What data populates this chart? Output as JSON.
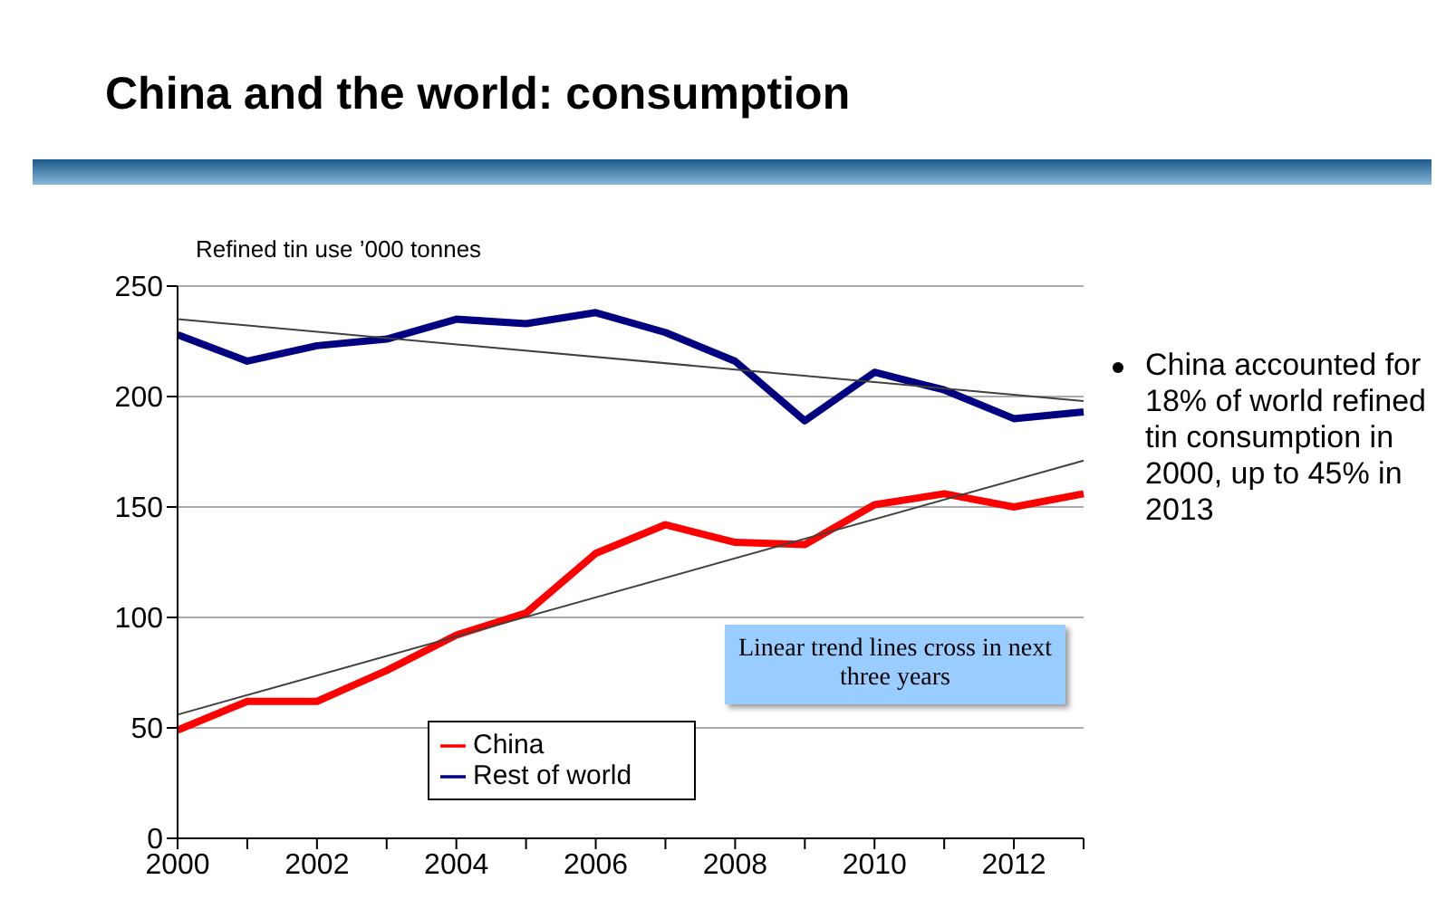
{
  "chart_data": {
    "type": "line",
    "title": "China and the world: consumption",
    "ylabel": "Refined tin use ’000 tonnes",
    "categories": [
      "2000",
      null,
      "2002",
      null,
      "2004",
      null,
      "2006",
      null,
      "2008",
      null,
      "2010",
      null,
      "2012",
      null
    ],
    "series": [
      {
        "name": "China",
        "color": "#ff0000",
        "values": [
          49,
          62,
          62,
          76,
          92,
          102,
          129,
          142,
          134,
          133,
          151,
          156,
          150,
          156
        ]
      },
      {
        "name": "Rest of world",
        "color": "#000080",
        "values": [
          228,
          216,
          223,
          226,
          235,
          233,
          238,
          229,
          216,
          189,
          211,
          203,
          190,
          193
        ]
      },
      {
        "type": "line",
        "color": "#404040",
        "values": [
          56,
          null,
          null,
          null,
          null,
          null,
          null,
          null,
          null,
          null,
          null,
          null,
          null,
          171
        ]
      },
      {
        "type": "line",
        "color": "#404040",
        "values": [
          235,
          null,
          null,
          null,
          null,
          null,
          null,
          null,
          null,
          null,
          null,
          null,
          null,
          198
        ]
      }
    ],
    "ylim": [
      0,
      250
    ],
    "yticks": [
      0,
      50,
      100,
      150,
      200,
      250
    ],
    "grid": "y",
    "legend": "bottom left",
    "annotations": [
      "Linear trend lines cross in next three years",
      "China accounted for 18% of world refined tin consumption in 2000, up to 45% in 2013"
    ]
  }
}
